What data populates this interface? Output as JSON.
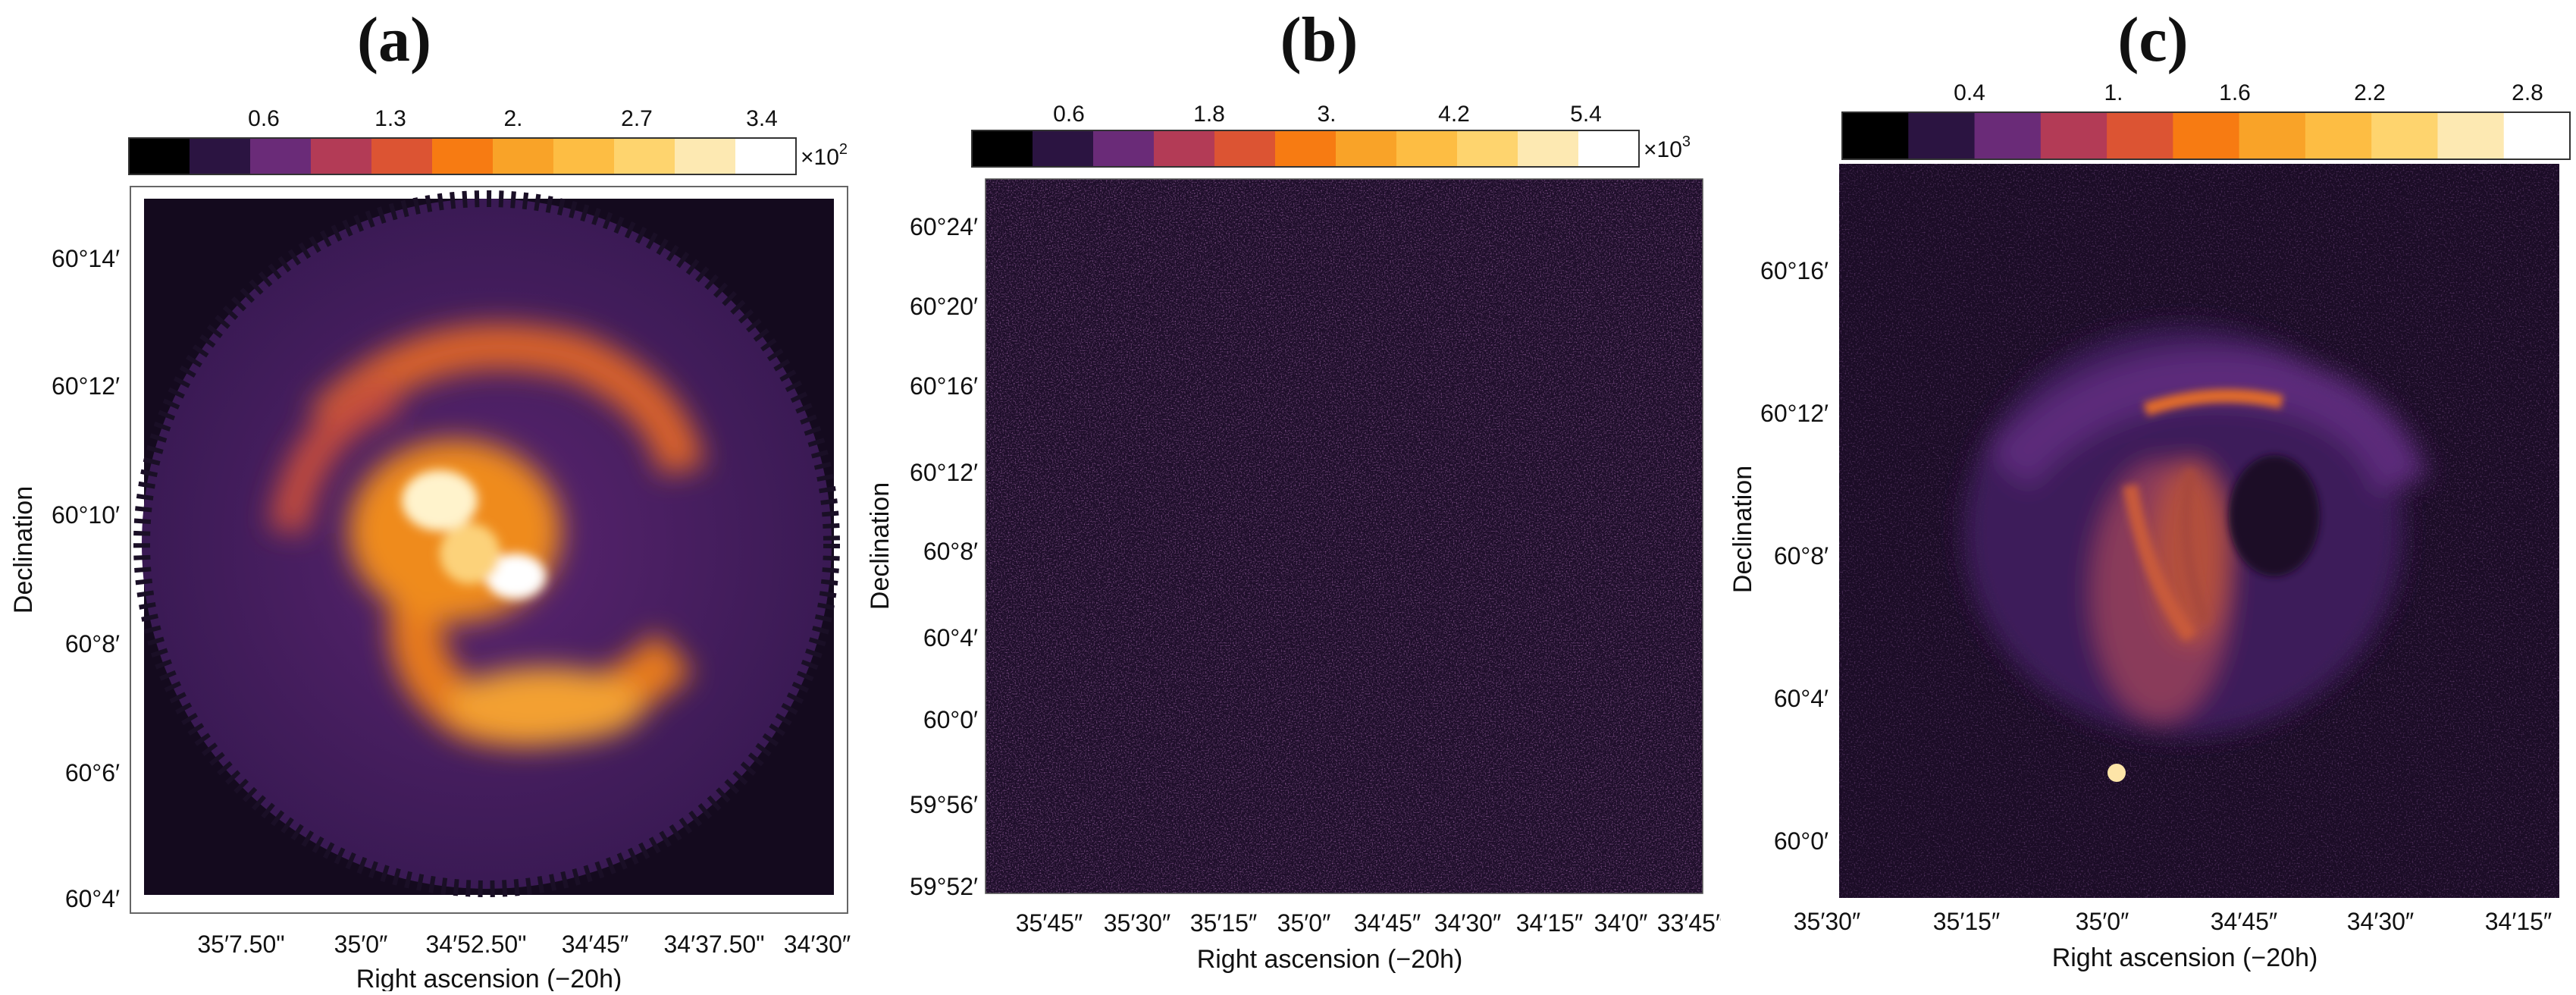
{
  "colormap": [
    "#000000",
    "#2b1441",
    "#6a2b78",
    "#b33b56",
    "#dc5433",
    "#f77b12",
    "#f9a328",
    "#fdbd43",
    "#fed46e",
    "#fde9b2",
    "#ffffff"
  ],
  "panels": [
    {
      "label": "(a)",
      "colorbar": {
        "ticks": [
          "0.6",
          "1.3",
          "2.",
          "2.7",
          "3.4"
        ],
        "multiplier_base": "×10",
        "multiplier_exp": "2"
      },
      "axes": {
        "xlabel": "Right ascension (−20h)",
        "ylabel": "Declination",
        "xticks": [
          "35′7.50\"",
          "35′0″",
          "34′52.50\"",
          "34′45″",
          "34′37.50\"",
          "34′30″"
        ],
        "yticks": [
          "60°14′",
          "60°12′",
          "60°10′",
          "60°8′",
          "60°6′",
          "60°4′"
        ]
      }
    },
    {
      "label": "(b)",
      "colorbar": {
        "ticks": [
          "0.6",
          "1.8",
          "3.",
          "4.2",
          "5.4"
        ],
        "multiplier_base": "×10",
        "multiplier_exp": "3"
      },
      "axes": {
        "xlabel": "Right ascension (−20h)",
        "ylabel": "Declination",
        "xticks": [
          "35′45″",
          "35′30″",
          "35′15″",
          "35′0″",
          "34′45″",
          "34′30″",
          "34′15″",
          "34′0″",
          "33′45″"
        ],
        "yticks": [
          "60°24′",
          "60°20′",
          "60°16′",
          "60°12′",
          "60°8′",
          "60°4′",
          "60°0′",
          "59°56′",
          "59°52′"
        ]
      }
    },
    {
      "label": "(c)",
      "colorbar": {
        "ticks": [
          "0.4",
          "1.",
          "1.6",
          "2.2",
          "2.8"
        ],
        "multiplier_base": "",
        "multiplier_exp": ""
      },
      "axes": {
        "xlabel": "Right ascension (−20h)",
        "ylabel": "Declination",
        "xticks": [
          "35′30″",
          "35′15″",
          "35′0″",
          "34′45″",
          "34′30″",
          "34′15″"
        ],
        "yticks": [
          "60°16′",
          "60°12′",
          "60°8′",
          "60°4′",
          "60°0′"
        ]
      }
    }
  ]
}
